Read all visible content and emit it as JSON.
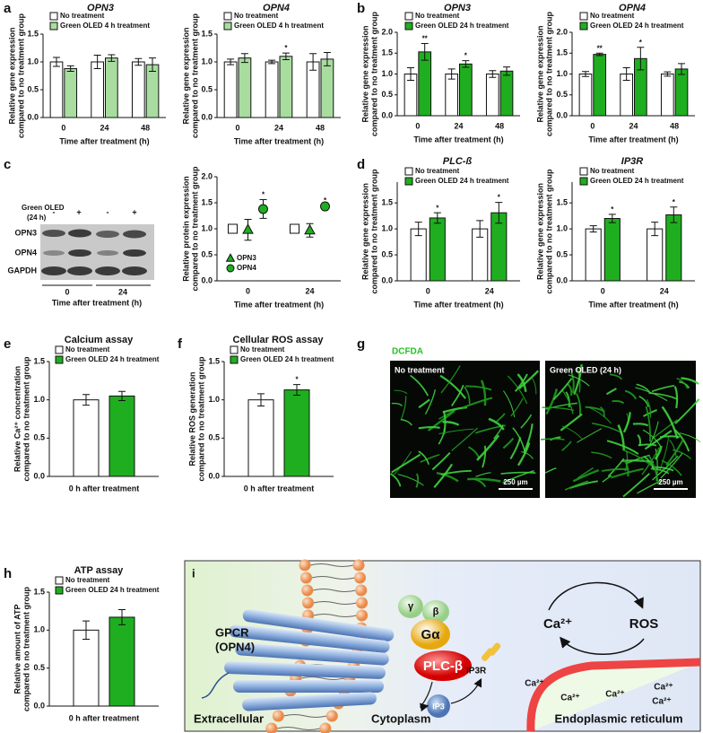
{
  "chart_data": [
    {
      "type": "bar",
      "panel_label": "a",
      "title": "OPN3",
      "categories": [
        "0",
        "24",
        "48"
      ],
      "xlabel": "Time after treatment (h)",
      "ylabel": [
        "Relative gene expression",
        "compared to no treatment group"
      ],
      "ylim": [
        0,
        1.5
      ],
      "yticks": [
        {
          "value": 0,
          "label": "0.0"
        },
        0.5,
        {
          "value": 1,
          "label": "1.0"
        },
        1.5
      ],
      "legend": "upper left",
      "series": [
        {
          "name": "No treatment",
          "color": "#ffffff",
          "values": [
            1.0,
            1.0,
            1.0
          ],
          "errors": [
            0.08,
            0.12,
            0.06
          ]
        },
        {
          "name": "Green OLED 4 h treatment",
          "color": "#a8dd9f",
          "values": [
            0.88,
            1.07,
            0.95
          ],
          "errors": [
            0.05,
            0.06,
            0.12
          ]
        }
      ]
    },
    {
      "type": "bar",
      "title": "OPN4",
      "categories": [
        "0",
        "24",
        "48"
      ],
      "xlabel": "Time after treatment (h)",
      "ylabel": [
        "Relative gene expression",
        "compared to no treatment group"
      ],
      "ylim": [
        0,
        1.5
      ],
      "yticks": [
        {
          "value": 0,
          "label": "0.0"
        },
        0.5,
        {
          "value": 1,
          "label": "1.0"
        },
        1.5
      ],
      "legend": "upper left",
      "series": [
        {
          "name": "No treatment",
          "color": "#ffffff",
          "values": [
            1.0,
            1.0,
            1.0
          ],
          "errors": [
            0.05,
            0.03,
            0.15
          ]
        },
        {
          "name": "Green OLED 4 h treatment",
          "color": "#a8dd9f",
          "values": [
            1.07,
            1.1,
            1.05
          ],
          "errors": [
            0.08,
            0.06,
            0.12
          ],
          "significance": [
            null,
            "*",
            null
          ]
        }
      ]
    },
    {
      "type": "bar",
      "panel_label": "b",
      "title": "OPN3",
      "categories": [
        "0",
        "24",
        "48"
      ],
      "xlabel": "Time after treatment (h)",
      "ylabel": [
        "Relative gene expression",
        "compared to no treatment group"
      ],
      "ylim": [
        0,
        2
      ],
      "yticks": [
        {
          "value": 0,
          "label": "0.0"
        },
        0.5,
        {
          "value": 1,
          "label": "1.0"
        },
        1.5,
        {
          "value": 2,
          "label": "2.0"
        }
      ],
      "legend": "upper left",
      "series": [
        {
          "name": "No treatment",
          "color": "#ffffff",
          "values": [
            1.0,
            1.0,
            1.0
          ],
          "errors": [
            0.15,
            0.12,
            0.08
          ]
        },
        {
          "name": "Green OLED 24 h treatment",
          "color": "#1fae1f",
          "values": [
            1.53,
            1.24,
            1.07
          ],
          "errors": [
            0.2,
            0.08,
            0.1
          ],
          "significance": [
            "**",
            "*",
            null
          ]
        }
      ]
    },
    {
      "type": "bar",
      "title": "OPN4",
      "categories": [
        "0",
        "24",
        "48"
      ],
      "xlabel": "Time after treatment (h)",
      "ylabel": [
        "Relative gene expression",
        "compared to no treatment group"
      ],
      "ylim": [
        0,
        2
      ],
      "yticks": [
        {
          "value": 0,
          "label": "0.0"
        },
        0.5,
        {
          "value": 1,
          "label": "1.0"
        },
        1.5,
        {
          "value": 2,
          "label": "2.0"
        }
      ],
      "legend": "upper left",
      "series": [
        {
          "name": "No treatment",
          "color": "#ffffff",
          "values": [
            1.0,
            1.0,
            1.0
          ],
          "errors": [
            0.06,
            0.15,
            0.05
          ]
        },
        {
          "name": "Green OLED 24 h treatment",
          "color": "#1fae1f",
          "values": [
            1.47,
            1.37,
            1.12
          ],
          "errors": [
            0.03,
            0.27,
            0.13
          ],
          "significance": [
            "**",
            "*",
            null
          ]
        }
      ]
    },
    {
      "type": "scatter",
      "categories": [
        "0",
        "24"
      ],
      "xlabel": "Time after treatment (h)",
      "ylabel": [
        "Relative protein expression",
        "compared to no treatment group"
      ],
      "ylim": [
        0,
        2
      ],
      "yticks": [
        {
          "value": 0,
          "label": "0.0"
        },
        0.5,
        {
          "value": 1,
          "label": "1.0"
        },
        1.5,
        {
          "value": 2,
          "label": "2.0"
        }
      ],
      "legend": "lower left",
      "series": [
        {
          "marker": "square",
          "color": "#ffffff",
          "values": [
            1.0,
            1.0
          ]
        },
        {
          "name": "OPN3",
          "marker": "triangle",
          "color": "#1fae1f",
          "values": [
            0.98,
            0.97
          ],
          "errors": [
            0.2,
            0.13
          ]
        },
        {
          "name": "OPN4",
          "marker": "circle",
          "color": "#1fae1f",
          "values": [
            1.38,
            1.43
          ],
          "errors": [
            0.18,
            0.02
          ],
          "significance": [
            "*",
            "*"
          ]
        }
      ]
    },
    {
      "type": "bar",
      "panel_label": "d",
      "title": "PLC-ß",
      "categories": [
        "0",
        "24"
      ],
      "xlabel": "Time after treatment (h)",
      "ylabel": [
        "Relative gene expression",
        "compared to no treatment group"
      ],
      "ylim": [
        0,
        1.9
      ],
      "yticks": [
        {
          "value": 0,
          "label": "0.0"
        },
        0.5,
        {
          "value": 1,
          "label": "1.0"
        },
        1.5
      ],
      "legend": "upper left",
      "series": [
        {
          "name": "No treatment",
          "color": "#ffffff",
          "values": [
            1.0,
            1.0
          ],
          "errors": [
            0.13,
            0.16
          ]
        },
        {
          "name": "Green OLED 24 h treatment",
          "color": "#1fae1f",
          "values": [
            1.21,
            1.31
          ],
          "errors": [
            0.1,
            0.2
          ],
          "significance": [
            "*",
            "*"
          ]
        }
      ]
    },
    {
      "type": "bar",
      "title": "IP3R",
      "categories": [
        "0",
        "24"
      ],
      "xlabel": "Time after treatment (h)",
      "ylabel": [
        "Relative gene expression",
        "compared to no treatment group"
      ],
      "ylim": [
        0,
        1.9
      ],
      "yticks": [
        {
          "value": 0,
          "label": "0.0"
        },
        0.5,
        {
          "value": 1,
          "label": "1.0"
        },
        1.5
      ],
      "legend": "upper left",
      "series": [
        {
          "name": "No treatment",
          "color": "#ffffff",
          "values": [
            1.0,
            1.0
          ],
          "errors": [
            0.06,
            0.13
          ]
        },
        {
          "name": "Green OLED 24 h treatment",
          "color": "#1fae1f",
          "values": [
            1.2,
            1.27
          ],
          "errors": [
            0.08,
            0.15
          ],
          "significance": [
            "*",
            "*"
          ]
        }
      ]
    },
    {
      "type": "bar",
      "panel_label": "e",
      "title": "Calcium assay",
      "categories": [
        null
      ],
      "xlabel": "0 h after treatment",
      "ylabel": [
        "Relative Ca²⁺ concentration",
        "compared to no treatment group"
      ],
      "ylim": [
        0,
        1.5
      ],
      "yticks": [
        {
          "value": 0,
          "label": "0.0"
        },
        0.5,
        {
          "value": 1,
          "label": "1.0"
        },
        1.5
      ],
      "legend": "upper left",
      "series": [
        {
          "name": "No treatment",
          "color": "#ffffff",
          "values": [
            1.0
          ],
          "errors": [
            0.07
          ]
        },
        {
          "name": "Green OLED 24 h treatment",
          "color": "#1fae1f",
          "values": [
            1.05
          ],
          "errors": [
            0.06
          ]
        }
      ]
    },
    {
      "type": "bar",
      "panel_label": "f",
      "title": "Cellular ROS assay",
      "categories": [
        null
      ],
      "xlabel": "0 h after treatment",
      "ylabel": [
        "Relative ROS generation",
        "compared to no treatment group"
      ],
      "ylim": [
        0,
        1.5
      ],
      "yticks": [
        {
          "value": 0,
          "label": "0.0"
        },
        0.5,
        {
          "value": 1,
          "label": "1.0"
        },
        1.5
      ],
      "legend": "upper left",
      "series": [
        {
          "name": "No treatment",
          "color": "#ffffff",
          "values": [
            1.0
          ],
          "errors": [
            0.08
          ]
        },
        {
          "name": "Green OLED 24 h treatment",
          "color": "#1fae1f",
          "values": [
            1.13
          ],
          "errors": [
            0.07
          ],
          "significance": [
            "*"
          ]
        }
      ]
    },
    {
      "type": "bar",
      "panel_label": "h",
      "title": "ATP assay",
      "categories": [
        null
      ],
      "xlabel": "0 h after treatment",
      "ylabel": [
        "Relative amount of ATP",
        "compared to no treatment group"
      ],
      "ylim": [
        0,
        1.5
      ],
      "yticks": [
        {
          "value": 0,
          "label": "0.0"
        },
        0.5,
        {
          "value": 1,
          "label": "1.0"
        },
        1.5
      ],
      "legend": "upper left",
      "series": [
        {
          "name": "No treatment",
          "color": "#ffffff",
          "values": [
            1.0
          ],
          "errors": [
            0.12
          ]
        },
        {
          "name": "Green OLED 24 h treatment",
          "color": "#1fae1f",
          "values": [
            1.17
          ],
          "errors": [
            0.1
          ]
        }
      ]
    }
  ],
  "western_blot": {
    "panel_label": "c",
    "treatment": [
      "Green OLED",
      "(24 h)"
    ],
    "lanes": [
      "-",
      "+",
      "-",
      "+"
    ],
    "bands": [
      "OPN3",
      "OPN4",
      "GAPDH"
    ],
    "timepoints": [
      "0",
      "24"
    ],
    "xlabel": "Time after treatment (h)"
  },
  "microscopy": {
    "panel_label": "g",
    "stain": "DCFDA",
    "panels": [
      {
        "label": "No treatment",
        "scale_bar": "250 µm"
      },
      {
        "label": "Green OLED (24 h)",
        "scale_bar": "250 µm"
      }
    ]
  },
  "pathway": {
    "panel_label": "i",
    "receptor": [
      "GPCR",
      "(OPN4)"
    ],
    "gamma": "γ",
    "beta": "β",
    "g_alpha": "Gα",
    "plc": "PLC-β",
    "ip3": "IP3",
    "ip3r": "IP3R",
    "calcium": "Ca²⁺",
    "ros": "ROS",
    "er_calcium": [
      "Ca²⁺",
      "Ca²⁺",
      "Ca²⁺",
      "Ca²⁺",
      "Ca²⁺"
    ],
    "extracellular": "Extracellular",
    "cytoplasm": "Cytoplasm",
    "er": "Endoplasmic reticulum"
  }
}
